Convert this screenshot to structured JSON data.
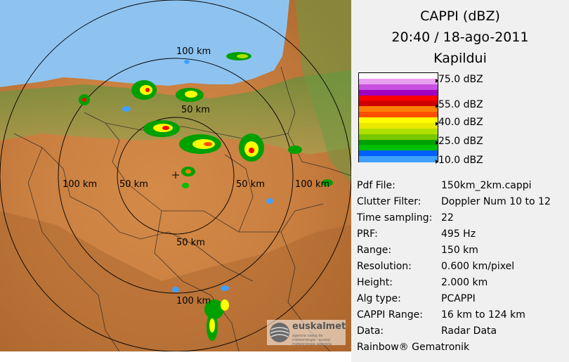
{
  "header": {
    "product": "CAPPI (dBZ)",
    "datetime": "20:40 / 18-ago-2011",
    "station": "Kapildui"
  },
  "scale": {
    "labels": [
      "75.0 dBZ",
      "55.0 dBZ",
      "40.0 dBZ",
      "25.0 dBZ",
      "10.0 dBZ"
    ],
    "colors": [
      "#ffffff",
      "#e8a0f0",
      "#c850e0",
      "#a000c0",
      "#ff0000",
      "#d00000",
      "#ff8000",
      "#ff5000",
      "#ffff00",
      "#e8e800",
      "#b0e000",
      "#78c800",
      "#00a000",
      "#00c000",
      "#0060ff",
      "#40a0ff"
    ]
  },
  "metadata": [
    {
      "key": "Pdf File:",
      "value": "150km_2km.cappi"
    },
    {
      "key": "Clutter Filter:",
      "value": "Doppler Num 10 to 12"
    },
    {
      "key": "Time sampling:",
      "value": "22"
    },
    {
      "key": "PRF:",
      "value": "495 Hz"
    },
    {
      "key": "Range:",
      "value": "150 km"
    },
    {
      "key": "Resolution:",
      "value": "0.600 km/pixel"
    },
    {
      "key": "Height:",
      "value": "2.000 km"
    },
    {
      "key": "Alg type:",
      "value": "PCAPPI"
    },
    {
      "key": "CAPPI Range:",
      "value": "16 km to 124 km"
    },
    {
      "key": "Data:",
      "value": "Radar Data"
    }
  ],
  "footer": "Rainbow® Gematronik",
  "map": {
    "range_labels": [
      "100 km",
      "50 km",
      "100 km",
      "50 km",
      "50 km",
      "100 km",
      "50 km",
      "100 km"
    ],
    "logo": "euskalmet",
    "logo_sub": "agencia vasca de meteorología · euskal meteorologia agentzia",
    "colors": {
      "sea": "#8ec3f0",
      "land_low": "#d89a50",
      "land_high": "#b87038",
      "land_green": "#7aa64a"
    }
  }
}
